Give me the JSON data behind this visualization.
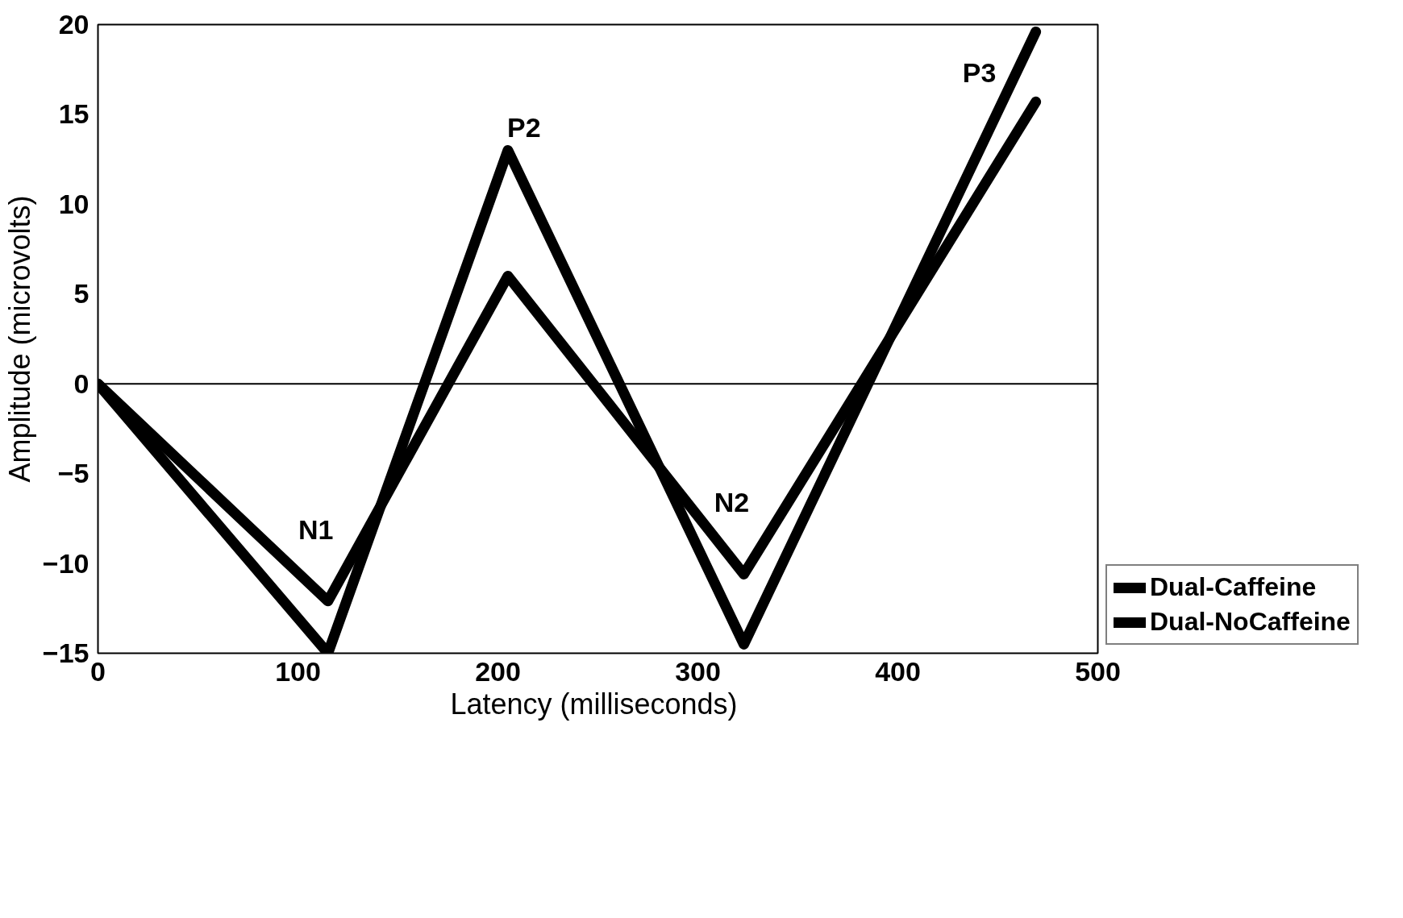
{
  "chart_data": {
    "type": "line",
    "xlabel": "Latency  (milliseconds)",
    "ylabel": "Amplitude (microvolts)",
    "x": [
      0,
      115,
      205,
      323,
      469
    ],
    "series": [
      {
        "name": "Dual-Caffeine",
        "color": "#000000",
        "values": [
          0,
          -15,
          13,
          -14.5,
          19.6
        ]
      },
      {
        "name": "Dual-NoCaffeine",
        "color": "#000000",
        "values": [
          0,
          -12.1,
          6,
          -10.6,
          15.7
        ]
      }
    ],
    "xlim": [
      0,
      500
    ],
    "ylim": [
      -15,
      20
    ],
    "xticks": [
      0,
      100,
      200,
      300,
      400,
      500
    ],
    "yticks": [
      -15,
      -10,
      -5,
      0,
      5,
      10,
      15,
      20
    ],
    "ref_lines": [
      {
        "axis": "y",
        "value": 0,
        "label": null,
        "color": "#000000"
      }
    ],
    "annotations": [
      "N1",
      "P2",
      "N2",
      "P3"
    ],
    "grid": false,
    "legend": "bottom right",
    "marker": "none",
    "line_style": "solid"
  }
}
